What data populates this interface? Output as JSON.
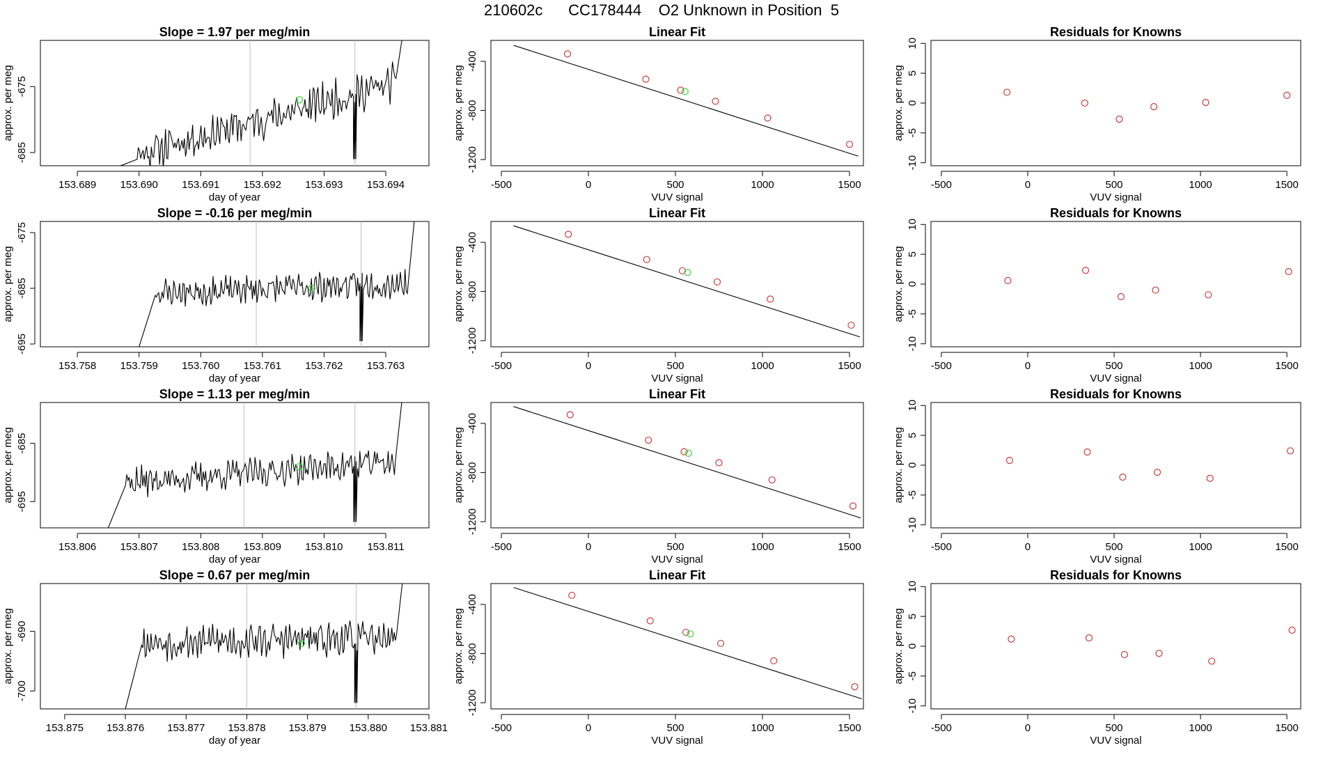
{
  "page": {
    "title": "210602c      CC178444    O2 Unknown in Position  5",
    "colors": {
      "known_point": "#cd3b3b",
      "unknown_point": "#33dd33",
      "line": "#000000",
      "gridline": "#bebebe"
    }
  },
  "chart_data": [
    {
      "type": "line",
      "row": 1,
      "panel": "timeseries",
      "title": "Slope =  1.97  per meg/min",
      "xlabel": "day of year",
      "ylabel": "approx. per meg",
      "xlim": [
        153.6884,
        153.6947
      ],
      "ylim": [
        -687,
        -668
      ],
      "xticks": [
        153.689,
        153.69,
        153.691,
        153.692,
        153.693,
        153.694
      ],
      "xtick_labels": [
        "153.689",
        "153.690",
        "153.691",
        "153.692",
        "153.693",
        "153.694"
      ],
      "yticks": [
        -675,
        -685
      ],
      "ytick_labels": [
        "-675",
        "-685"
      ],
      "vlines": [
        153.6918,
        153.6935
      ],
      "trace": {
        "x_start": 153.6897,
        "x_end": 153.6943,
        "y_start": -686,
        "y_end": -674,
        "wiggle": 2.2,
        "seed": 11
      },
      "unknown_point": {
        "x": 153.6926,
        "y": -677
      }
    },
    {
      "type": "scatter",
      "row": 1,
      "panel": "fit",
      "title": "Linear Fit",
      "xlabel": "VUV signal",
      "ylabel": "approx. per meg",
      "xlim": [
        -560,
        1580
      ],
      "ylim": [
        -1250,
        -230
      ],
      "xticks": [
        -500,
        0,
        500,
        1000,
        1500
      ],
      "xtick_labels": [
        "-500",
        "0",
        "500",
        "1000",
        "1500"
      ],
      "yticks": [
        -400,
        -800,
        -1200
      ],
      "ytick_labels": [
        "-400",
        "-800",
        "-1200"
      ],
      "fit_line": {
        "x": [
          -430,
          1550
        ],
        "y": [
          -270,
          -1172
        ]
      },
      "knowns": {
        "x": [
          -120,
          330,
          530,
          730,
          1030,
          1500
        ],
        "y": [
          -340,
          -545,
          -635,
          -725,
          -862,
          -1076
        ]
      },
      "unknown": {
        "x": 555,
        "y": -646
      }
    },
    {
      "type": "scatter",
      "row": 1,
      "panel": "residuals",
      "title": "Residuals for Knowns",
      "xlabel": "VUV signal",
      "ylabel": "approx. per meg",
      "xlim": [
        -560,
        1580
      ],
      "ylim": [
        -10.5,
        10.5
      ],
      "xticks": [
        -500,
        0,
        500,
        1000,
        1500
      ],
      "xtick_labels": [
        "-500",
        "0",
        "500",
        "1000",
        "1500"
      ],
      "yticks": [
        10,
        5,
        0,
        -5,
        -10
      ],
      "ytick_labels": [
        "10",
        "5",
        "0",
        "-5",
        "-10"
      ],
      "residuals": {
        "x": [
          -120,
          330,
          530,
          730,
          1030,
          1500
        ],
        "y": [
          1.8,
          0.0,
          -2.7,
          -0.6,
          0.1,
          1.3
        ]
      }
    },
    {
      "type": "line",
      "row": 2,
      "panel": "timeseries",
      "title": "Slope =  -0.16  per meg/min",
      "xlabel": "day of year",
      "ylabel": "approx. per meg",
      "xlim": [
        153.7574,
        153.7637
      ],
      "ylim": [
        -695.5,
        -673
      ],
      "xticks": [
        153.758,
        153.759,
        153.76,
        153.761,
        153.762,
        153.763
      ],
      "xtick_labels": [
        "153.758",
        "153.759",
        "153.760",
        "153.761",
        "153.762",
        "153.763"
      ],
      "yticks": [
        -675,
        -685,
        -695
      ],
      "ytick_labels": [
        "-675",
        "-685",
        "-695"
      ],
      "vlines": [
        153.7609,
        153.7626
      ],
      "trace": {
        "x_start": 153.759,
        "x_end": 153.7635,
        "y_start": -686,
        "y_end": -684,
        "wiggle": 2.0,
        "seed": 23
      },
      "unknown_point": {
        "x": 153.7618,
        "y": -685
      }
    },
    {
      "type": "scatter",
      "row": 2,
      "panel": "fit",
      "title": "Linear Fit",
      "xlabel": "VUV signal",
      "ylabel": "approx. per meg",
      "xlim": [
        -560,
        1580
      ],
      "ylim": [
        -1250,
        -230
      ],
      "xticks": [
        -500,
        0,
        500,
        1000,
        1500
      ],
      "xtick_labels": [
        "-500",
        "0",
        "500",
        "1000",
        "1500"
      ],
      "yticks": [
        -400,
        -800,
        -1200
      ],
      "ytick_labels": [
        "-400",
        "-800",
        "-1200"
      ],
      "fit_line": {
        "x": [
          -430,
          1560
        ],
        "y": [
          -265,
          -1170
        ]
      },
      "knowns": {
        "x": [
          -115,
          335,
          540,
          740,
          1045,
          1510
        ],
        "y": [
          -335,
          -540,
          -632,
          -722,
          -862,
          -1074
        ]
      },
      "unknown": {
        "x": 570,
        "y": -645
      }
    },
    {
      "type": "scatter",
      "row": 2,
      "panel": "residuals",
      "title": "Residuals for Knowns",
      "xlabel": "VUV signal",
      "ylabel": "approx. per meg",
      "xlim": [
        -560,
        1580
      ],
      "ylim": [
        -10.5,
        10.5
      ],
      "xticks": [
        -500,
        0,
        500,
        1000,
        1500
      ],
      "xtick_labels": [
        "-500",
        "0",
        "500",
        "1000",
        "1500"
      ],
      "yticks": [
        10,
        5,
        0,
        -5,
        -10
      ],
      "ytick_labels": [
        "10",
        "5",
        "0",
        "-5",
        "-10"
      ],
      "residuals": {
        "x": [
          -115,
          335,
          540,
          740,
          1045,
          1510
        ],
        "y": [
          0.6,
          2.3,
          -2.1,
          -1.0,
          -1.8,
          2.1
        ]
      }
    },
    {
      "type": "line",
      "row": 3,
      "panel": "timeseries",
      "title": "Slope =  1.13  per meg/min",
      "xlabel": "day of year",
      "ylabel": "approx. per meg",
      "xlim": [
        153.8054,
        153.8117
      ],
      "ylim": [
        -699.5,
        -678
      ],
      "xticks": [
        153.806,
        153.807,
        153.808,
        153.809,
        153.81,
        153.811
      ],
      "xtick_labels": [
        "153.806",
        "153.807",
        "153.808",
        "153.809",
        "153.810",
        "153.811"
      ],
      "yticks": [
        -685,
        -695
      ],
      "ytick_labels": [
        "-685",
        "-695"
      ],
      "vlines": [
        153.8087,
        153.8105
      ],
      "trace": {
        "x_start": 153.8065,
        "x_end": 153.8113,
        "y_start": -692,
        "y_end": -688,
        "wiggle": 2.0,
        "seed": 37
      },
      "unknown_point": {
        "x": 153.8096,
        "y": -689
      }
    },
    {
      "type": "scatter",
      "row": 3,
      "panel": "fit",
      "title": "Linear Fit",
      "xlabel": "VUV signal",
      "ylabel": "approx. per meg",
      "xlim": [
        -560,
        1580
      ],
      "ylim": [
        -1250,
        -230
      ],
      "xticks": [
        -500,
        0,
        500,
        1000,
        1500
      ],
      "xtick_labels": [
        "-500",
        "0",
        "500",
        "1000",
        "1500"
      ],
      "yticks": [
        -400,
        -800,
        -1200
      ],
      "ytick_labels": [
        "-400",
        "-800",
        "-1200"
      ],
      "fit_line": {
        "x": [
          -430,
          1565
        ],
        "y": [
          -263,
          -1170
        ]
      },
      "knowns": {
        "x": [
          -105,
          345,
          550,
          750,
          1055,
          1520
        ],
        "y": [
          -330,
          -537,
          -630,
          -720,
          -860,
          -1072
        ]
      },
      "unknown": {
        "x": 575,
        "y": -643
      }
    },
    {
      "type": "scatter",
      "row": 3,
      "panel": "residuals",
      "title": "Residuals for Knowns",
      "xlabel": "VUV signal",
      "ylabel": "approx. per meg",
      "xlim": [
        -560,
        1580
      ],
      "ylim": [
        -10.5,
        10.5
      ],
      "xticks": [
        -500,
        0,
        500,
        1000,
        1500
      ],
      "xtick_labels": [
        "-500",
        "0",
        "500",
        "1000",
        "1500"
      ],
      "yticks": [
        10,
        5,
        0,
        -5,
        -10
      ],
      "ytick_labels": [
        "10",
        "5",
        "0",
        "-5",
        "-10"
      ],
      "residuals": {
        "x": [
          -105,
          345,
          550,
          750,
          1055,
          1520
        ],
        "y": [
          0.8,
          2.2,
          -2.0,
          -1.2,
          -2.2,
          2.4
        ]
      }
    },
    {
      "type": "line",
      "row": 4,
      "panel": "timeseries",
      "title": "Slope =  0.67  per meg/min",
      "xlabel": "day of year",
      "ylabel": "approx. per meg",
      "xlim": [
        153.8746,
        153.881
      ],
      "ylim": [
        -703,
        -682
      ],
      "xticks": [
        153.875,
        153.876,
        153.877,
        153.878,
        153.879,
        153.88,
        153.881
      ],
      "xtick_labels": [
        "153.875",
        "153.876",
        "153.877",
        "153.878",
        "153.879",
        "153.880",
        "153.881"
      ],
      "yticks": [
        -690,
        -700
      ],
      "ytick_labels": [
        "-690",
        "-700"
      ],
      "vlines": [
        153.878,
        153.8798
      ],
      "trace": {
        "x_start": 153.876,
        "x_end": 153.8806,
        "y_start": -692,
        "y_end": -691,
        "wiggle": 2.2,
        "seed": 53
      },
      "unknown_point": {
        "x": 153.8789,
        "y": -692
      }
    },
    {
      "type": "scatter",
      "row": 4,
      "panel": "fit",
      "title": "Linear Fit",
      "xlabel": "VUV signal",
      "ylabel": "approx. per meg",
      "xlim": [
        -560,
        1580
      ],
      "ylim": [
        -1250,
        -230
      ],
      "xticks": [
        -500,
        0,
        500,
        1000,
        1500
      ],
      "xtick_labels": [
        "-500",
        "0",
        "500",
        "1000",
        "1500"
      ],
      "yticks": [
        -400,
        -800,
        -1200
      ],
      "ytick_labels": [
        "-400",
        "-800",
        "-1200"
      ],
      "fit_line": {
        "x": [
          -430,
          1570
        ],
        "y": [
          -262,
          -1168
        ]
      },
      "knowns": {
        "x": [
          -95,
          355,
          560,
          760,
          1065,
          1530
        ],
        "y": [
          -326,
          -533,
          -627,
          -717,
          -858,
          -1070
        ]
      },
      "unknown": {
        "x": 585,
        "y": -640
      }
    },
    {
      "type": "scatter",
      "row": 4,
      "panel": "residuals",
      "title": "Residuals for Knowns",
      "xlabel": "VUV signal",
      "ylabel": "approx. per meg",
      "xlim": [
        -560,
        1580
      ],
      "ylim": [
        -10.5,
        10.5
      ],
      "xticks": [
        -500,
        0,
        500,
        1000,
        1500
      ],
      "xtick_labels": [
        "-500",
        "0",
        "500",
        "1000",
        "1500"
      ],
      "yticks": [
        10,
        5,
        0,
        -5,
        -10
      ],
      "ytick_labels": [
        "10",
        "5",
        "0",
        "-5",
        "-10"
      ],
      "residuals": {
        "x": [
          -95,
          355,
          560,
          760,
          1065,
          1530
        ],
        "y": [
          1.2,
          1.4,
          -1.4,
          -1.2,
          -2.5,
          2.7
        ]
      }
    }
  ]
}
